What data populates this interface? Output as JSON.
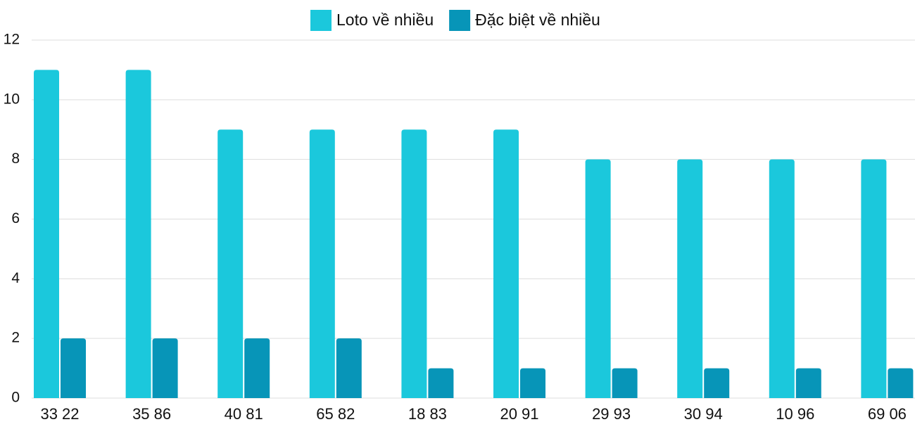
{
  "chart_data": {
    "type": "bar",
    "categories": [
      "33 22",
      "35 86",
      "40 81",
      "65 82",
      "18 83",
      "20 91",
      "29 93",
      "30 94",
      "10 96",
      "69 06"
    ],
    "series": [
      {
        "name": "Loto về nhiều",
        "color": "#1bc8dc",
        "values": [
          11,
          11,
          9,
          9,
          9,
          9,
          8,
          8,
          8,
          8
        ]
      },
      {
        "name": "Đặc biệt về nhiều",
        "color": "#0795b8",
        "values": [
          2,
          2,
          2,
          2,
          1,
          1,
          1,
          1,
          1,
          1
        ]
      }
    ],
    "ylim": [
      0,
      12
    ],
    "yticks": [
      0,
      2,
      4,
      6,
      8,
      10,
      12
    ],
    "grid": true,
    "legend": "top"
  }
}
